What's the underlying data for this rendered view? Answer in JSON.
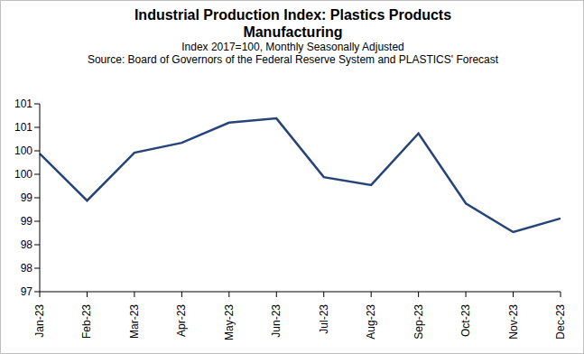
{
  "chart_data": {
    "type": "line",
    "title": "Industrial Production Index: Plastics Products Manufacturing",
    "subtitle": [
      "Index 2017=100, Monthly Seasonally Adjusted",
      "Source: Board of Governors of the Federal Reserve System and PLASTICS' Forecast"
    ],
    "categories": [
      "Jan-23",
      "Feb-23",
      "Mar-23",
      "Apr-23",
      "May-23",
      "Jun-23",
      "Jul-23",
      "Aug-23",
      "Sep-23",
      "Oct-23",
      "Nov-23",
      "Dec-23"
    ],
    "values": [
      99.94,
      98.94,
      99.96,
      100.17,
      100.6,
      100.69,
      99.44,
      99.27,
      100.37,
      98.88,
      98.27,
      98.56
    ],
    "color": "#264478",
    "ylim": [
      97,
      101
    ],
    "yticks": [
      97,
      {
        "value": 97.5,
        "label": "98"
      },
      98,
      {
        "value": 98.5,
        "label": "99"
      },
      99,
      {
        "value": 99.5,
        "label": "100"
      },
      100,
      {
        "value": 100.5,
        "label": "101"
      },
      101
    ],
    "grid": false
  }
}
